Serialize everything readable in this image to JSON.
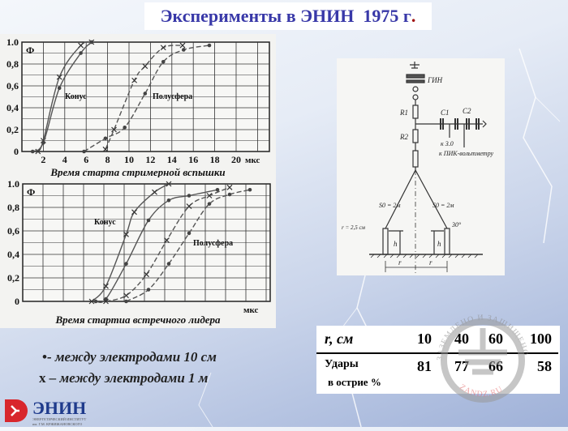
{
  "title": {
    "text": "Эксперименты в ЭНИН  1975 г",
    "period": "."
  },
  "chart_data": [
    {
      "type": "line",
      "ylabel": "Ф",
      "xlabel": "Время старта стримерной вспышки",
      "xunit": "мкс",
      "xticks": [
        "2",
        "4",
        "6",
        "8",
        "10",
        "12",
        "14",
        "16",
        "18",
        "20"
      ],
      "yticks": [
        "0",
        "0,2",
        "0,4",
        "0,6",
        "0,8",
        "1.0"
      ],
      "xlim": [
        0,
        23
      ],
      "ylim": [
        0,
        1
      ],
      "grid": true,
      "annotations": [
        "Конус",
        "Полусфера"
      ],
      "series": [
        {
          "group": "Конус",
          "marker": "x",
          "style": "solid",
          "x": [
            1.5,
            2,
            3.5,
            5.5,
            6.5
          ],
          "y": [
            0,
            0.1,
            0.68,
            0.97,
            1.0
          ]
        },
        {
          "group": "Конус",
          "marker": "dot",
          "style": "solid",
          "x": [
            1,
            2,
            3.5,
            5.5,
            6.5
          ],
          "y": [
            0,
            0.08,
            0.58,
            0.9,
            1.0
          ]
        },
        {
          "group": "Полусфера",
          "marker": "x",
          "style": "dashed",
          "x": [
            7.8,
            8.6,
            10.5,
            11.5,
            13.2,
            15
          ],
          "y": [
            0.02,
            0.2,
            0.65,
            0.78,
            0.95,
            0.97
          ]
        },
        {
          "group": "Полусфера",
          "marker": "dot",
          "style": "dashed",
          "x": [
            5.8,
            7.8,
            9.6,
            11.5,
            13.2,
            15.1,
            17.5
          ],
          "y": [
            0,
            0.12,
            0.22,
            0.53,
            0.82,
            0.93,
            0.97
          ]
        }
      ]
    },
    {
      "type": "line",
      "ylabel": "Ф",
      "xlabel": "Время стартиа встречного лидера",
      "xunit": "мкс",
      "yticks": [
        "0",
        "0,2",
        "0,4",
        "0,6",
        "0,8",
        "1.0"
      ],
      "xlim": [
        0,
        12.2
      ],
      "ylim": [
        0,
        1
      ],
      "grid": true,
      "annotations": [
        "Конус",
        "Полусфера"
      ],
      "series": [
        {
          "group": "Конус",
          "marker": "x",
          "style": "solid",
          "x": [
            3.4,
            4.1,
            5.1,
            5.5,
            6.5,
            7.2
          ],
          "y": [
            0,
            0.13,
            0.57,
            0.76,
            0.93,
            1.0
          ]
        },
        {
          "group": "Конус",
          "marker": "dot",
          "style": "solid",
          "x": [
            3.6,
            4.1,
            5.1,
            6.2,
            7.2,
            8.2,
            9.6
          ],
          "y": [
            0,
            0.02,
            0.32,
            0.69,
            0.86,
            0.9,
            0.95
          ]
        },
        {
          "group": "Полусфера",
          "marker": "x",
          "style": "dashed",
          "x": [
            4.1,
            5.1,
            6.1,
            7.1,
            8.2,
            9.2,
            10.2
          ],
          "y": [
            0,
            0.05,
            0.23,
            0.52,
            0.81,
            0.9,
            0.97
          ]
        },
        {
          "group": "Полусфера",
          "marker": "dot",
          "style": "dashed",
          "x": [
            5.1,
            6.2,
            7.2,
            8.2,
            9.2,
            10.2,
            11.2
          ],
          "y": [
            0,
            0.1,
            0.32,
            0.58,
            0.83,
            0.91,
            0.95
          ]
        }
      ]
    }
  ],
  "diagram": {
    "labels": [
      "ГИН",
      "R1",
      "R2",
      "C1",
      "C2",
      "к 3.0",
      "к ПИК-вольтметру",
      "S0 = 2м",
      "S0 = 2м",
      "r = 2,5 см",
      "30°",
      "h",
      "h",
      "r",
      "r"
    ]
  },
  "legend": [
    {
      "symbol": "•",
      "text": "- между электродами 10 см"
    },
    {
      "symbol": "x",
      "text": " – между электродами 1 м"
    }
  ],
  "table": {
    "header_label": "r,  см",
    "r_values": [
      "10",
      "40",
      "60",
      "100"
    ],
    "row_label_line1": "Удары",
    "row_label_line2": "в острие %",
    "strike_values": [
      "81",
      "77",
      "66",
      "58"
    ]
  },
  "watermark": {
    "text_top": "ЗАЗЕМЛЕНО И ЗАЩИЩЕНО",
    "text_bottom": "ZANDZ.RU"
  },
  "logo": {
    "name": "ЭНИН",
    "subtitle1": "ЭНЕРГЕТИЧЕСКИЙ ИНСТИТУТ",
    "subtitle2": "им. Г.М. КРЖИЖАНОВСКОГО"
  },
  "colors": {
    "title": "#3838a8",
    "curve": "#555555",
    "logo_red": "#d8262c",
    "logo_text": "#1f3b8c",
    "watermark": "#b0b0b0",
    "watermark_text": "#e07070"
  }
}
